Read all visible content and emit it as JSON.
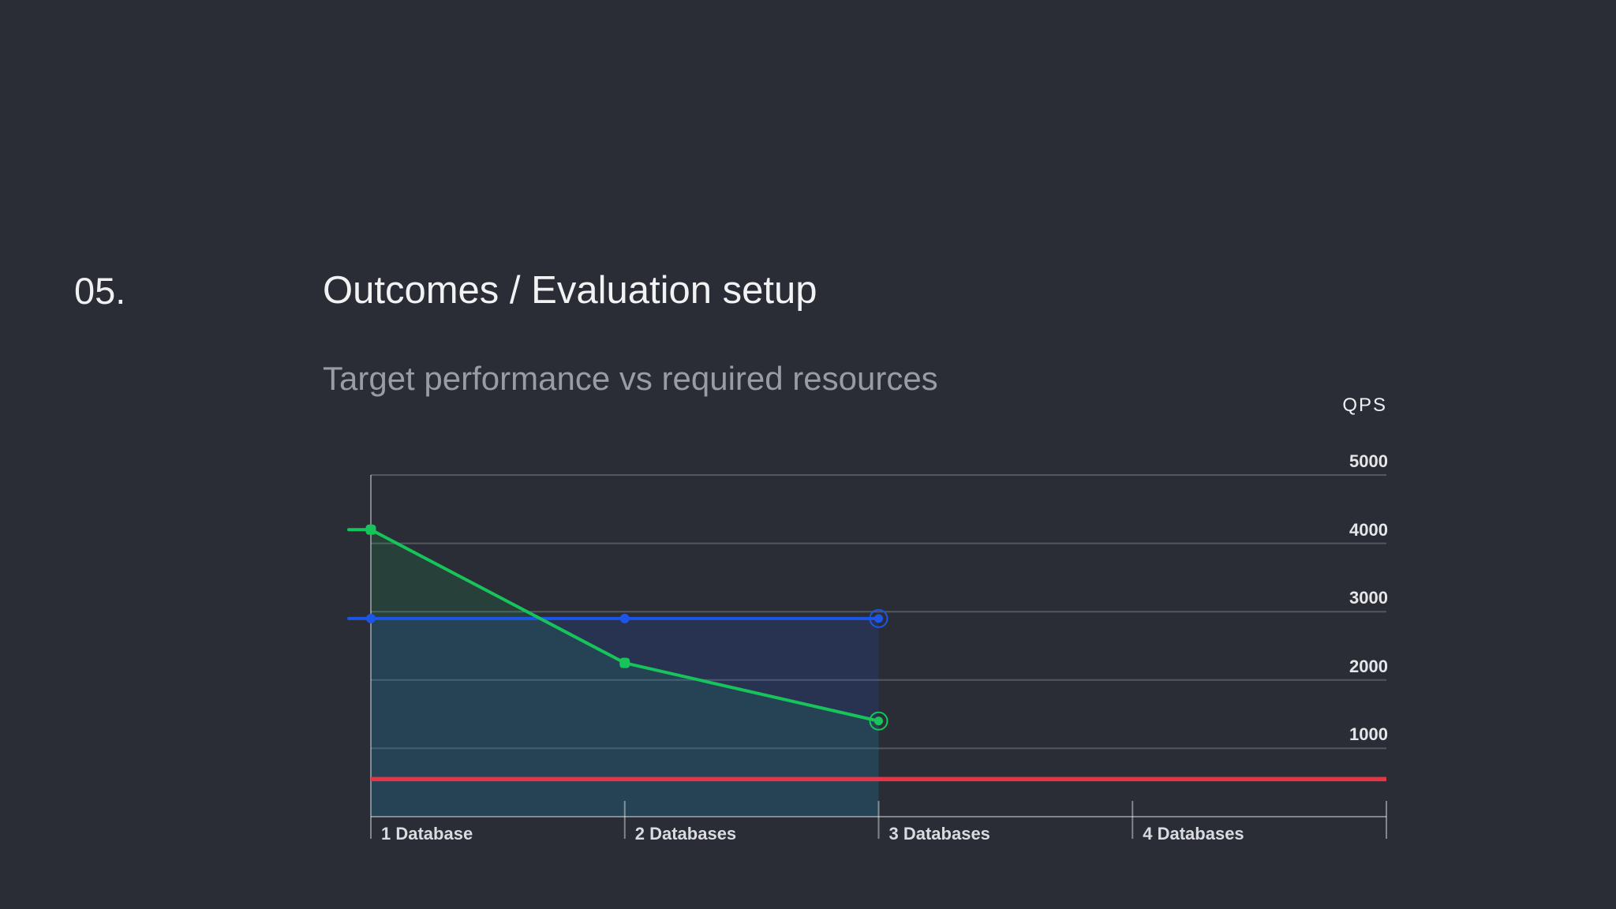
{
  "header": {
    "slide_number": "05.",
    "title": "Outcomes / Evaluation setup",
    "subtitle": "Target performance vs required resources"
  },
  "chart_data": {
    "type": "line",
    "title": "",
    "xlabel": "",
    "ylabel": "QPS",
    "ylim": [
      0,
      5000
    ],
    "y_ticks": [
      5000,
      4000,
      3000,
      2000,
      1000
    ],
    "grid": true,
    "legend_position": "none",
    "categories": [
      "1 Database",
      "2 Databases",
      "3 Databases",
      "4 Databases"
    ],
    "series": [
      {
        "name": "green-series",
        "color": "#17c35b",
        "marker": "square",
        "area": true,
        "fill_opacity": 0.13,
        "end_ring": true,
        "x": [
          "1 Database",
          "2 Databases",
          "3 Databases"
        ],
        "values": [
          4200,
          2250,
          1400
        ]
      },
      {
        "name": "blue-series",
        "color": "#1d55e6",
        "marker": "circle",
        "area": true,
        "fill_opacity": 0.16,
        "end_ring": true,
        "x": [
          "1 Database",
          "2 Databases",
          "3 Databases"
        ],
        "values": [
          2900,
          2900,
          2900
        ]
      },
      {
        "name": "red-threshold-line",
        "color": "#e93448",
        "marker": "none",
        "area": false,
        "full_width": true,
        "value": 550
      }
    ]
  },
  "colors": {
    "background": "#2a2d35",
    "title_text": "#f1f2f4",
    "subtitle_text": "#989ca4",
    "axis_text": "#e4e6e9",
    "gridline": "rgba(255,255,255,0.20)",
    "axis_line": "rgba(255,255,255,0.42)"
  }
}
